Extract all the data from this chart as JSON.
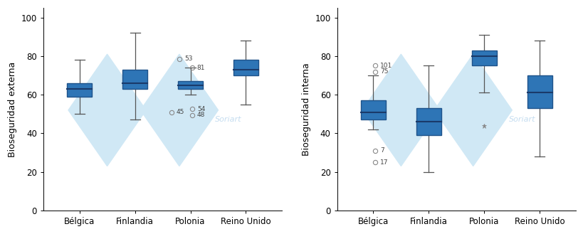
{
  "left": {
    "ylabel": "Bioseguridad externa",
    "categories": [
      "Bélgica",
      "Finlandia",
      "Polonia",
      "Reino Unido"
    ],
    "boxes": [
      {
        "q1": 59,
        "median": 63,
        "q3": 66,
        "whislo": 50,
        "whishi": 78
      },
      {
        "q1": 63,
        "median": 66,
        "q3": 73,
        "whislo": 47,
        "whishi": 92
      },
      {
        "q1": 63,
        "median": 65,
        "q3": 67,
        "whislo": 60,
        "whishi": 74
      },
      {
        "q1": 70,
        "median": 73,
        "q3": 78,
        "whislo": 55,
        "whishi": 88
      }
    ],
    "fliers": [
      [],
      [],
      [
        {
          "y": 77,
          "label": "53",
          "xoff": -0.18,
          "yoff": 1.5,
          "marker": "o"
        },
        {
          "y": 74,
          "label": "81",
          "xoff": 0.05,
          "yoff": 0.0,
          "marker": "o"
        },
        {
          "y": 51,
          "label": "45",
          "xoff": -0.32,
          "yoff": 0.0,
          "marker": "o"
        },
        {
          "y": 51,
          "label": "54",
          "xoff": 0.05,
          "yoff": 1.5,
          "marker": "o"
        },
        {
          "y": 51,
          "label": "48",
          "xoff": 0.05,
          "yoff": -1.5,
          "marker": "o"
        }
      ],
      []
    ],
    "ylim": [
      0,
      105
    ],
    "yticks": [
      0,
      20,
      40,
      60,
      80,
      100
    ]
  },
  "right": {
    "ylabel": "Bioseguridad interna",
    "categories": [
      "Bélgica",
      "Finlandia",
      "Polonia",
      "Reino Unido"
    ],
    "boxes": [
      {
        "q1": 47,
        "median": 51,
        "q3": 57,
        "whislo": 42,
        "whishi": 70
      },
      {
        "q1": 39,
        "median": 46,
        "q3": 53,
        "whislo": 20,
        "whishi": 75
      },
      {
        "q1": 75,
        "median": 80,
        "q3": 83,
        "whislo": 61,
        "whishi": 91
      },
      {
        "q1": 53,
        "median": 61,
        "q3": 70,
        "whislo": 28,
        "whishi": 88
      }
    ],
    "fliers": [
      [
        {
          "y": 74,
          "label": "101",
          "xoff": 0.05,
          "yoff": 1.0,
          "marker": "o"
        },
        {
          "y": 72,
          "label": "75",
          "xoff": 0.05,
          "yoff": 0.0,
          "marker": "o"
        },
        {
          "y": 31,
          "label": "7",
          "xoff": 0.05,
          "yoff": 0.0,
          "marker": "o"
        },
        {
          "y": 25,
          "label": "17",
          "xoff": 0.05,
          "yoff": 0.0,
          "marker": "o"
        }
      ],
      [],
      [
        {
          "y": 44,
          "label": "",
          "xoff": 0.0,
          "yoff": 0.0,
          "marker": "*"
        }
      ],
      []
    ],
    "ylim": [
      0,
      105
    ],
    "yticks": [
      0,
      20,
      40,
      60,
      80,
      100
    ]
  },
  "box_color": "#2e75b6",
  "box_edge_color": "#1f538a",
  "median_color": "#1a3a6a",
  "whisker_color": "#555555",
  "flier_marker_color": "#888888",
  "flier_text_color": "#444444",
  "bg_diamond_color": "#d0e8f5",
  "watermark_text": "Soriart",
  "watermark_color": "#c5ddf0",
  "fontsize": 8,
  "label_fontsize": 8.5,
  "ylabel_fontsize": 9
}
